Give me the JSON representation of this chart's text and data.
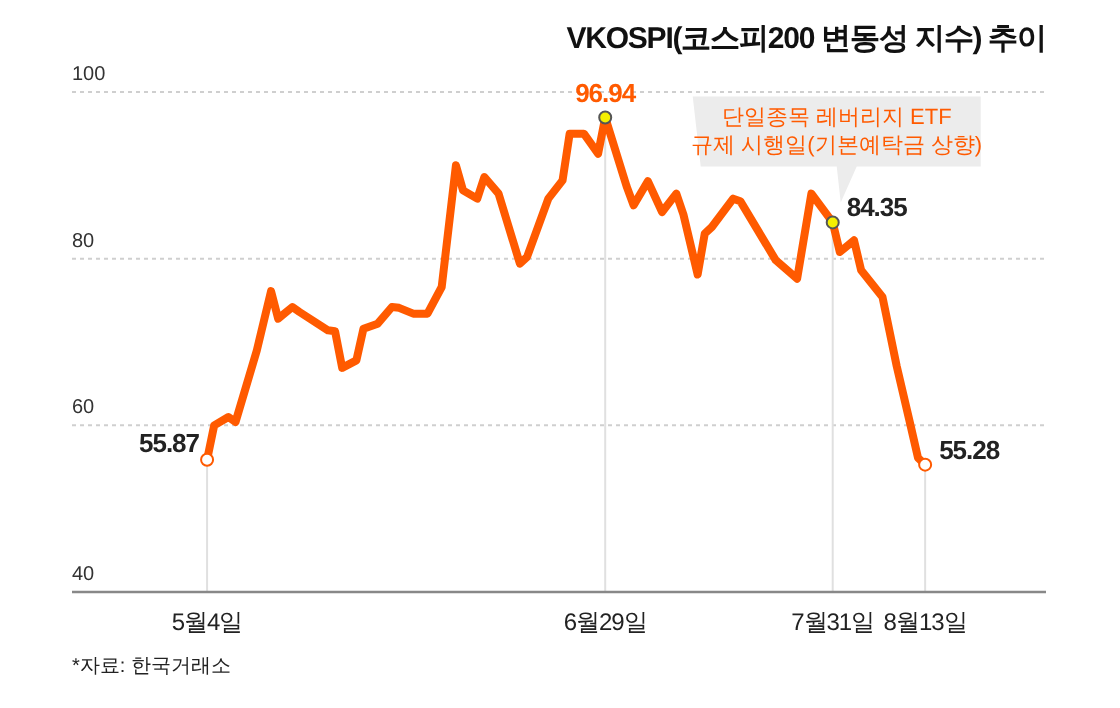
{
  "chart_data": {
    "type": "line",
    "title": "VKOSPI(코스피200 변동성 지수) 추이",
    "x": [
      "--05-04",
      "--05-05",
      "--05-07",
      "--05-08",
      "--05-11",
      "--05-13",
      "--05-14",
      "--05-16",
      "--05-17",
      "--05-21",
      "--05-22",
      "--05-23",
      "--05-25",
      "--05-26",
      "--05-28",
      "--05-30",
      "--05-31",
      "--06-02",
      "--06-04",
      "--06-06",
      "--06-08",
      "--06-09",
      "--06-11",
      "--06-12",
      "--06-14",
      "--06-17",
      "--06-18",
      "--06-21",
      "--06-23",
      "--06-24",
      "--06-26",
      "--06-28",
      "--06-29",
      "--07-02",
      "--07-03",
      "--07-05",
      "--07-07",
      "--07-09",
      "--07-10",
      "--07-12",
      "--07-13",
      "--07-14",
      "--07-17",
      "--07-18",
      "--07-23",
      "--07-26",
      "--07-28",
      "--07-31",
      "--08-01",
      "--08-03",
      "--08-04",
      "--08-07",
      "--08-09",
      "--08-11",
      "--08-12",
      "--08-13"
    ],
    "series": [
      {
        "color": "#ff5a00",
        "values": [
          55.87,
          60.0,
          61.0,
          60.4,
          69.0,
          76.1,
          72.8,
          74.2,
          73.6,
          71.4,
          71.3,
          66.9,
          67.8,
          71.6,
          72.2,
          74.2,
          74.1,
          73.4,
          73.4,
          76.6,
          91.2,
          88.2,
          87.2,
          89.8,
          87.8,
          79.4,
          80.2,
          87.2,
          89.4,
          95.0,
          95.0,
          92.6,
          96.94,
          88.7,
          86.4,
          89.3,
          85.6,
          87.8,
          85.3,
          78.1,
          83.0,
          83.8,
          87.2,
          86.9,
          79.8,
          77.6,
          87.8,
          84.35,
          80.8,
          82.2,
          78.6,
          75.4,
          67.1,
          59.8,
          56.1,
          55.28
        ],
        "value_labels": [
          "55.87",
          null,
          null,
          null,
          null,
          null,
          null,
          null,
          null,
          null,
          null,
          null,
          null,
          null,
          null,
          null,
          null,
          null,
          null,
          null,
          null,
          null,
          null,
          null,
          null,
          null,
          null,
          null,
          null,
          null,
          null,
          null,
          "96.94",
          null,
          null,
          null,
          null,
          null,
          null,
          null,
          null,
          null,
          null,
          null,
          null,
          null,
          null,
          "84.35",
          null,
          null,
          null,
          null,
          null,
          null,
          null,
          "55.28"
        ]
      }
    ],
    "xlim": [
      "--04-15",
      "--08-30"
    ],
    "xticks": [
      {
        "value": "--05-04",
        "label": "5월4일"
      },
      {
        "value": "--06-29",
        "label": "6월29일"
      },
      {
        "value": "--07-31",
        "label": "7월31일"
      },
      {
        "value": "--08-13",
        "label": "8월13일"
      }
    ],
    "ylim": [
      40,
      100
    ],
    "yticks": [
      40,
      60,
      80,
      100
    ],
    "grid": true,
    "line_style": "solid",
    "marker": "none",
    "annotations": [
      {
        "text": "단일종목 레버리지 ETF\n규제 시행일(기본예탁금 상향)",
        "x": "--07-31",
        "y": 84.35
      },
      "*자료: 한국거래소"
    ]
  }
}
